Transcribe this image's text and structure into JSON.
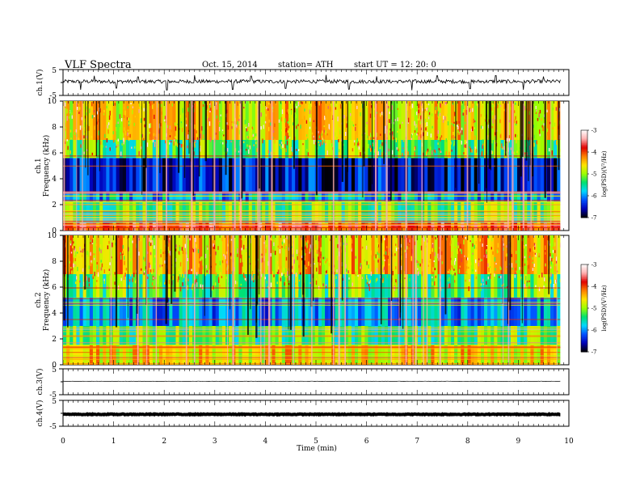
{
  "header": {
    "title": "VLF  Spectra",
    "date": "Oct. 15, 2014",
    "station": "station= ATH",
    "start": "start  UT =   12: 20: 0"
  },
  "colors": {
    "trace": "#000000",
    "axis": "#000000",
    "colormap": [
      "#000000",
      "#0000b8",
      "#0050ff",
      "#00d8ff",
      "#00e070",
      "#9cff00",
      "#ffe400",
      "#ff8000",
      "#e00000",
      "#ffb0b0",
      "#ffffff"
    ]
  },
  "chart_data": [
    {
      "type": "line",
      "panel": "ch1-waveform",
      "ylabel": "ch.1(V)",
      "ylim": [
        -5,
        5
      ],
      "yticks": [
        "5",
        "-5"
      ],
      "xlim": [
        0,
        10
      ],
      "x_data_max": 9.83,
      "baseline": 0.4,
      "noise_amplitude": 0.7,
      "spikes": [
        {
          "x": 0.35,
          "y": -2.8
        },
        {
          "x": 0.62,
          "y": 2.6
        },
        {
          "x": 1.05,
          "y": -2.2
        },
        {
          "x": 1.48,
          "y": 2.2
        },
        {
          "x": 2.05,
          "y": -2.9
        },
        {
          "x": 2.6,
          "y": 2.8
        },
        {
          "x": 3.35,
          "y": -2.7
        },
        {
          "x": 3.72,
          "y": 2.5
        },
        {
          "x": 4.4,
          "y": -2.3
        },
        {
          "x": 5.2,
          "y": 2.9
        },
        {
          "x": 5.65,
          "y": -2.6
        },
        {
          "x": 6.2,
          "y": 2.4
        },
        {
          "x": 6.9,
          "y": -3.0
        },
        {
          "x": 7.4,
          "y": 2.6
        },
        {
          "x": 8.05,
          "y": -2.4
        },
        {
          "x": 8.55,
          "y": 2.7
        },
        {
          "x": 9.1,
          "y": -2.8
        },
        {
          "x": 9.5,
          "y": 2.3
        }
      ]
    },
    {
      "type": "heatmap",
      "panel": "ch1-spectrogram",
      "ylabel": "ch.1",
      "ylabel2": "Frequency  (kHz)",
      "yticks": [
        "0",
        "2",
        "4",
        "6",
        "8",
        "10"
      ],
      "ylim": [
        0,
        10
      ],
      "xlim": [
        0,
        10
      ],
      "x_data_max": 9.83,
      "colorbar": {
        "label": "log(PSD)(V²/Hz)",
        "ticks": [
          "-3",
          "-4",
          "-5",
          "-6",
          "-7"
        ],
        "range": [
          -7,
          -3
        ]
      },
      "bands": [
        {
          "f_min": 0,
          "f_max": 0.6,
          "level": -3.9
        },
        {
          "f_min": 0.6,
          "f_max": 2.2,
          "level": -5.2
        },
        {
          "f_min": 2.2,
          "f_max": 3.0,
          "level": -5.9
        },
        {
          "f_min": 3.0,
          "f_max": 5.6,
          "level": -6.5
        },
        {
          "f_min": 5.6,
          "f_max": 7.0,
          "level": -5.2
        },
        {
          "f_min": 7.0,
          "f_max": 10,
          "level": -4.6
        }
      ]
    },
    {
      "type": "heatmap",
      "panel": "ch2-spectrogram",
      "ylabel": "ch.2",
      "ylabel2": "Frequency  (kHz)",
      "yticks": [
        "0",
        "2",
        "4",
        "6",
        "8",
        "10"
      ],
      "ylim": [
        0,
        10
      ],
      "xlim": [
        0,
        10
      ],
      "x_data_max": 9.83,
      "colorbar": {
        "label": "log(PSD)(V²/Hz)",
        "ticks": [
          "-3",
          "-4",
          "-5",
          "-6",
          "-7"
        ],
        "range": [
          -7,
          -3
        ]
      },
      "bands": [
        {
          "f_min": 0,
          "f_max": 1.5,
          "level": -4.6
        },
        {
          "f_min": 1.5,
          "f_max": 3.0,
          "level": -5.3
        },
        {
          "f_min": 3.0,
          "f_max": 5.2,
          "level": -6.0
        },
        {
          "f_min": 5.2,
          "f_max": 7.0,
          "level": -5.2
        },
        {
          "f_min": 7.0,
          "f_max": 10,
          "level": -4.5
        }
      ]
    },
    {
      "type": "line",
      "panel": "ch3-waveform",
      "ylabel": "ch.3(V)",
      "ylim": [
        -5,
        5
      ],
      "yticks": [
        "5",
        "-5"
      ],
      "xlim": [
        0,
        10
      ],
      "x_data_max": 9.83,
      "baseline": 0.2,
      "noise_amplitude": 0.05
    },
    {
      "type": "line",
      "panel": "ch4-waveform",
      "ylabel": "ch.4(V)",
      "ylim": [
        -5,
        5
      ],
      "yticks": [
        "5",
        "-5"
      ],
      "xlim": [
        0,
        10
      ],
      "x_data_max": 9.83,
      "baseline": -0.4,
      "noise_amplitude": 0.15
    }
  ],
  "xaxis": {
    "label": "Time  (min)",
    "ticks": [
      "0",
      "1",
      "2",
      "3",
      "4",
      "5",
      "6",
      "7",
      "8",
      "9",
      "10"
    ]
  }
}
